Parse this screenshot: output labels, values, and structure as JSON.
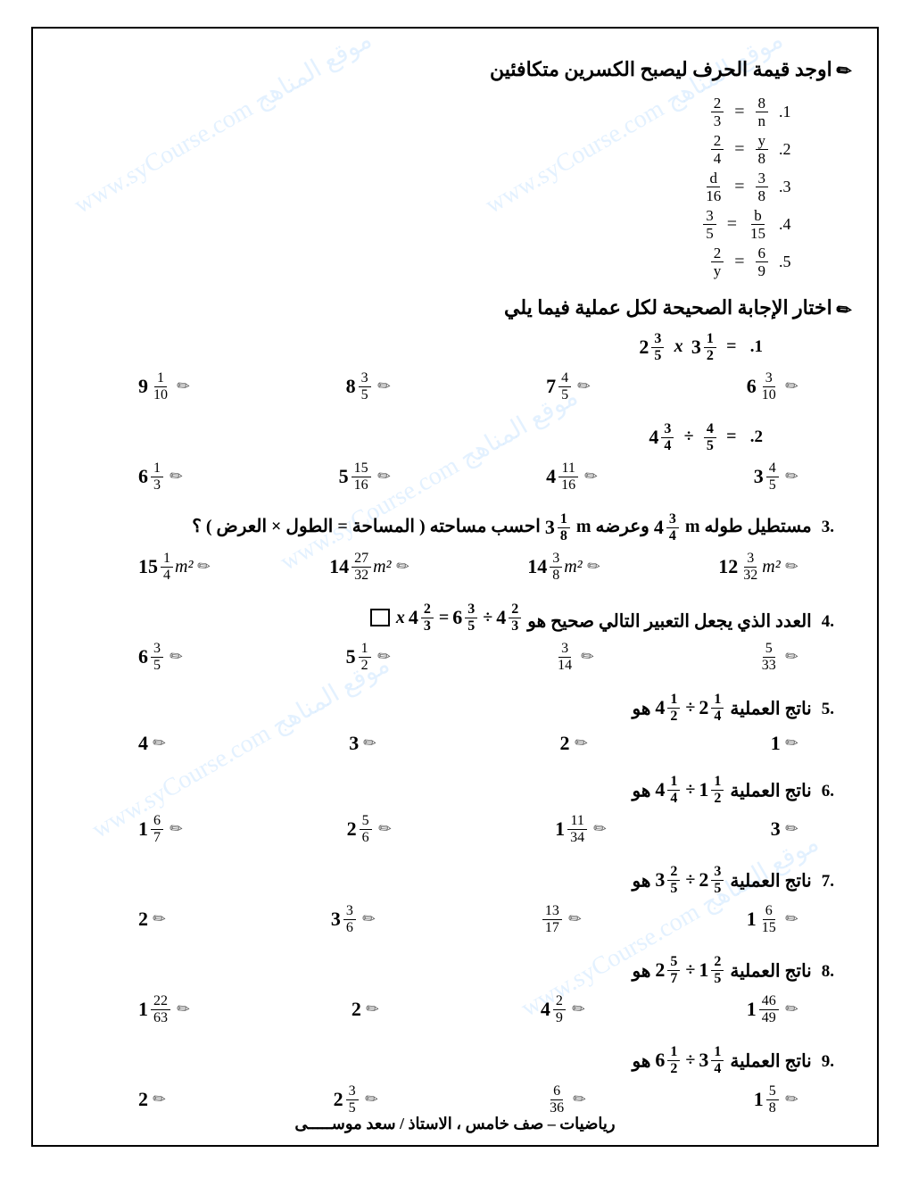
{
  "section1": {
    "title": "اوجد قيمة الحرف ليصبح الكسرين متكافئين",
    "equations": [
      {
        "n": ".1",
        "left_n": "2",
        "left_d": "3",
        "right_n": "8",
        "right_d": "n"
      },
      {
        "n": ".2",
        "left_n": "2",
        "left_d": "4",
        "right_n": "y",
        "right_d": "8"
      },
      {
        "n": ".3",
        "left_n": "d",
        "left_d": "16",
        "right_n": "3",
        "right_d": "8"
      },
      {
        "n": ".4",
        "left_n": "3",
        "left_d": "5",
        "right_n": "b",
        "right_d": "15"
      },
      {
        "n": ".5",
        "left_n": "2",
        "left_d": "y",
        "right_n": "6",
        "right_d": "9"
      }
    ]
  },
  "section2": {
    "title": "اختار الإجابة الصحيحة لكل عملية فيما يلي",
    "questions": [
      {
        "n": ".1",
        "type": "mult",
        "a": {
          "w": "2",
          "n": "3",
          "d": "5"
        },
        "b": {
          "w": "3",
          "n": "1",
          "d": "2"
        },
        "opts": [
          {
            "w": "6",
            "n": "3",
            "d": "10"
          },
          {
            "w": "7",
            "n": "4",
            "d": "5"
          },
          {
            "w": "8",
            "n": "3",
            "d": "5"
          },
          {
            "w": "9",
            "n": "1",
            "d": "10"
          }
        ]
      },
      {
        "n": ".2",
        "type": "div",
        "a": {
          "w": "4",
          "n": "3",
          "d": "4"
        },
        "b": {
          "w": "",
          "n": "4",
          "d": "5"
        },
        "opts": [
          {
            "w": "3",
            "n": "4",
            "d": "5"
          },
          {
            "w": "4",
            "n": "11",
            "d": "16"
          },
          {
            "w": "5",
            "n": "15",
            "d": "16"
          },
          {
            "w": "6",
            "n": "1",
            "d": "3"
          }
        ]
      },
      {
        "n": ".3",
        "type": "rect",
        "text_pre": "مستطيل طوله",
        "len": {
          "w": "4",
          "n": "3",
          "d": "4"
        },
        "unit1": "m",
        "text_mid": "وعرضه",
        "wid": {
          "w": "3",
          "n": "1",
          "d": "8"
        },
        "unit2": "m",
        "text_post": "احسب مساحته ( المساحة = الطول × العرض ) ؟",
        "opts": [
          {
            "w": "12",
            "n": "3",
            "d": "32",
            "u": "m²"
          },
          {
            "w": "14",
            "n": "3",
            "d": "8",
            "u": "m²"
          },
          {
            "w": "14",
            "n": "27",
            "d": "32",
            "u": "m²"
          },
          {
            "w": "15",
            "n": "1",
            "d": "4",
            "u": "m²"
          }
        ]
      },
      {
        "n": ".4",
        "type": "box",
        "text": "العدد الذي يجعل التعبير التالي صحيح هو",
        "eq_a": {
          "w": "4",
          "n": "2",
          "d": "3"
        },
        "eq_b": {
          "w": "6",
          "n": "3",
          "d": "5"
        },
        "eq_c": {
          "w": "4",
          "n": "2",
          "d": "3"
        },
        "opts": [
          {
            "w": "",
            "n": "5",
            "d": "33"
          },
          {
            "w": "",
            "n": "3",
            "d": "14"
          },
          {
            "w": "5",
            "n": "1",
            "d": "2"
          },
          {
            "w": "6",
            "n": "3",
            "d": "5"
          }
        ]
      },
      {
        "n": ".5",
        "type": "div",
        "text": "ناتج العملية",
        "a": {
          "w": "4",
          "n": "1",
          "d": "2"
        },
        "b": {
          "w": "2",
          "n": "1",
          "d": "4"
        },
        "suffix": "هو",
        "opts": [
          {
            "plain": "1"
          },
          {
            "plain": "2"
          },
          {
            "plain": "3"
          },
          {
            "plain": "4"
          }
        ]
      },
      {
        "n": ".6",
        "type": "div",
        "text": "ناتج العملية",
        "a": {
          "w": "4",
          "n": "1",
          "d": "4"
        },
        "b": {
          "w": "1",
          "n": "1",
          "d": "2"
        },
        "suffix": "هو",
        "opts": [
          {
            "plain": "3"
          },
          {
            "w": "1",
            "n": "11",
            "d": "34"
          },
          {
            "w": "2",
            "n": "5",
            "d": "6"
          },
          {
            "w": "1",
            "n": "6",
            "d": "7"
          }
        ]
      },
      {
        "n": ".7",
        "type": "div",
        "text": "ناتج العملية",
        "a": {
          "w": "3",
          "n": "2",
          "d": "5"
        },
        "b": {
          "w": "2",
          "n": "3",
          "d": "5"
        },
        "suffix": "هو",
        "opts": [
          {
            "w": "1",
            "n": "6",
            "d": "15"
          },
          {
            "w": "",
            "n": "13",
            "d": "17"
          },
          {
            "w": "3",
            "n": "3",
            "d": "6"
          },
          {
            "plain": "2"
          }
        ]
      },
      {
        "n": ".8",
        "type": "div",
        "text": "ناتج العملية",
        "a": {
          "w": "2",
          "n": "5",
          "d": "7"
        },
        "b": {
          "w": "1",
          "n": "2",
          "d": "5"
        },
        "suffix": "هو",
        "opts": [
          {
            "w": "1",
            "n": "46",
            "d": "49"
          },
          {
            "w": "4",
            "n": "2",
            "d": "9"
          },
          {
            "plain": "2"
          },
          {
            "w": "1",
            "n": "22",
            "d": "63"
          }
        ]
      },
      {
        "n": ".9",
        "type": "div",
        "text": "ناتج العملية",
        "a": {
          "w": "6",
          "n": "1",
          "d": "2"
        },
        "b": {
          "w": "3",
          "n": "1",
          "d": "4"
        },
        "suffix": "هو",
        "opts": [
          {
            "w": "1",
            "n": "5",
            "d": "8"
          },
          {
            "w": "",
            "n": "6",
            "d": "36"
          },
          {
            "w": "2",
            "n": "3",
            "d": "5"
          },
          {
            "plain": "2"
          }
        ]
      }
    ]
  },
  "footer": "رياضيات – صف خامس ، الاستاذ / سعد موســـــى",
  "watermark": "موقع المناهج www.syCourse.com",
  "colors": {
    "text": "#000000",
    "bg": "#ffffff",
    "border": "#000000",
    "watermark": "rgba(100,180,255,0.18)"
  }
}
